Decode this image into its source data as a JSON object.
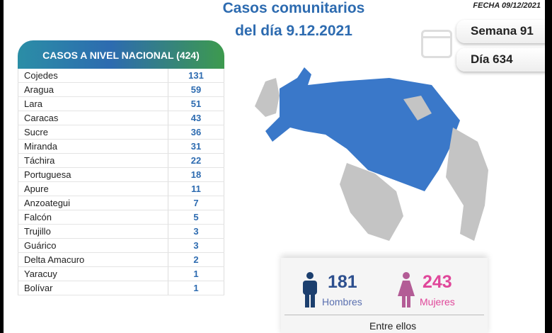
{
  "header": {
    "title_line1": "Casos comunitarios",
    "title_line2": "del día 9.12.2021",
    "fecha": "FECHA 09/12/2021",
    "semana": "Semana 91",
    "dia": "Día 634"
  },
  "table": {
    "title": "CASOS A NIVEL NACIONAL  (424)",
    "rows": [
      [
        "Cojedes",
        "131"
      ],
      [
        "Aragua",
        "59"
      ],
      [
        "Lara",
        "51"
      ],
      [
        "Caracas",
        "43"
      ],
      [
        "Sucre",
        "36"
      ],
      [
        "Miranda",
        "31"
      ],
      [
        "Táchira",
        "22"
      ],
      [
        "Portuguesa",
        "18"
      ],
      [
        "Apure",
        "11"
      ],
      [
        "Anzoategui",
        "7"
      ],
      [
        "Falcón",
        "5"
      ],
      [
        "Trujillo",
        "3"
      ],
      [
        "Guárico",
        "3"
      ],
      [
        "Delta Amacuro",
        "2"
      ],
      [
        "Yaracuy",
        "1"
      ],
      [
        "Bolívar",
        "1"
      ]
    ]
  },
  "gender": {
    "men_count": "181",
    "men_label": "Hombres",
    "women_count": "243",
    "women_label": "Mujeres",
    "between": "Entre ellos"
  },
  "colors": {
    "blue": "#2d6bb0",
    "map_blue": "#3a78c9",
    "pink": "#e0479a",
    "navy": "#1c3f6e"
  }
}
